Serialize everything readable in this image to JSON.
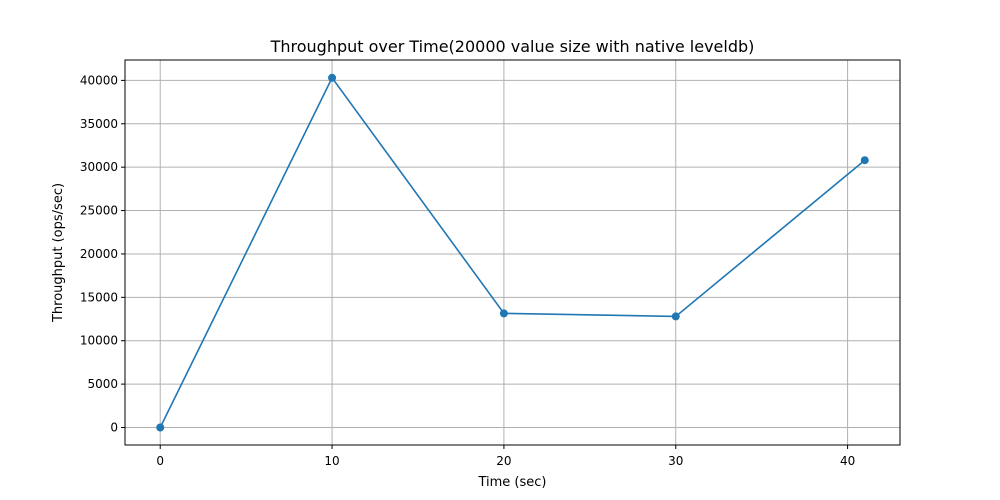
{
  "chart_data": {
    "type": "line",
    "title": "Throughput over Time(20000 value size with native leveldb)",
    "xlabel": "Time (sec)",
    "ylabel": "Throughput (ops/sec)",
    "xlim": [
      -2.05,
      43.05
    ],
    "ylim": [
      -2016,
      42350
    ],
    "xticks": [
      0,
      10,
      20,
      30,
      40
    ],
    "yticks": [
      0,
      5000,
      10000,
      15000,
      20000,
      25000,
      30000,
      35000,
      40000
    ],
    "grid": true,
    "series": [
      {
        "x": [
          0,
          10,
          20,
          30,
          41
        ],
        "y": [
          0,
          40300,
          13150,
          12800,
          30800
        ],
        "color": "#1f77b4",
        "marker": "circle"
      }
    ]
  }
}
